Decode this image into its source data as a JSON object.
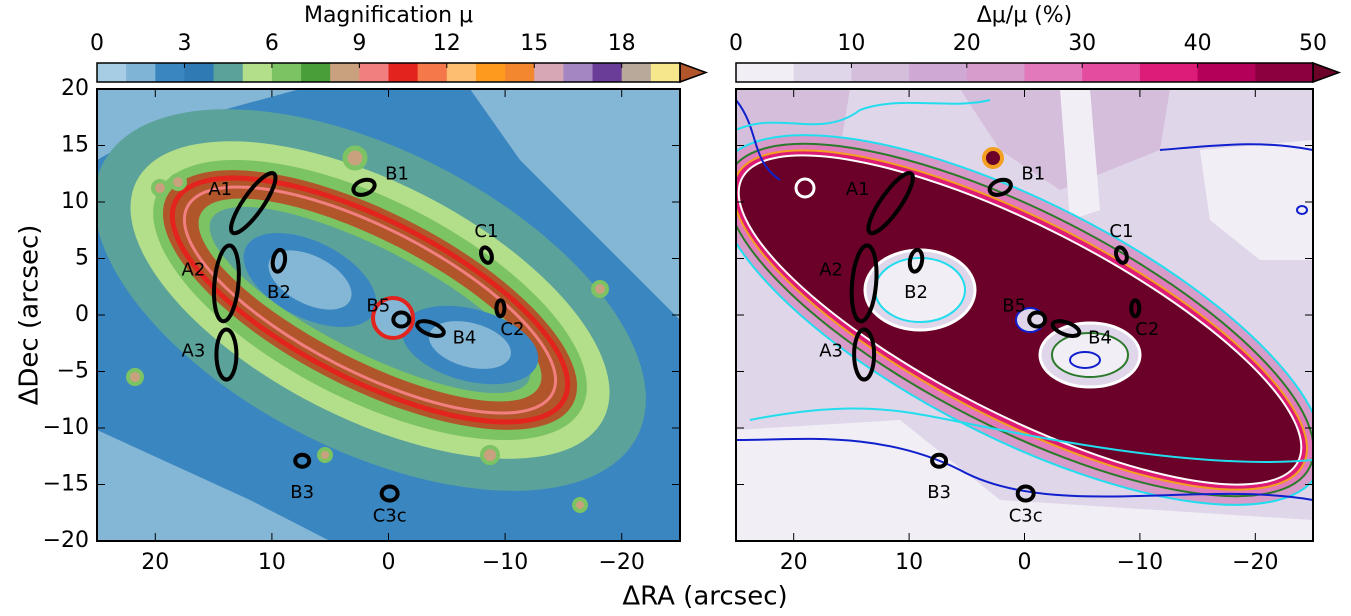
{
  "chart_data": [
    {
      "type": "map",
      "colorbar_label": "Magnification μ",
      "clim": [
        0,
        20
      ],
      "cbar_ticks": [
        0,
        3,
        6,
        9,
        12,
        15,
        18
      ],
      "colors": [
        "#a6cde3",
        "#7fb4d6",
        "#3a86c0",
        "#2f7ab5",
        "#5ba29b",
        "#b3de8a",
        "#7cc363",
        "#4a9e3a",
        "#c9a17f",
        "#f27f7f",
        "#e3231d",
        "#f4784a",
        "#fdbf6f",
        "#fe9a1e",
        "#f3872f",
        "#d8a7b5",
        "#a486c2",
        "#6a3e98",
        "#b9a99a",
        "#f6e68c"
      ],
      "over_color": "#b0562a",
      "x_label": "ΔRA (arcsec)",
      "y_label": "ΔDec (arcsec)",
      "xlim": [
        25,
        -25
      ],
      "ylim": [
        -20,
        20
      ],
      "xticks": [
        20,
        10,
        0,
        {
          "value": -10,
          "label": "−10"
        },
        {
          "value": -20,
          "label": "−20"
        }
      ],
      "yticks": [
        {
          "value": -20,
          "label": "−20"
        },
        {
          "value": -15,
          "label": "−15"
        },
        {
          "value": -10,
          "label": "−10"
        },
        {
          "value": -5,
          "label": "−5"
        },
        0,
        5,
        10,
        15,
        20
      ],
      "images": [
        {
          "label": "A1",
          "x": 11.6,
          "y": 9.9
        },
        {
          "label": "A2",
          "x": 13.9,
          "y": 2.8
        },
        {
          "label": "A3",
          "x": 13.9,
          "y": -3.5
        },
        {
          "label": "B1",
          "x": 2.1,
          "y": 11.3
        },
        {
          "label": "B2",
          "x": 9.4,
          "y": 4.8
        },
        {
          "label": "B3",
          "x": 7.4,
          "y": -12.9
        },
        {
          "label": "B4",
          "x": -3.6,
          "y": -1.2
        },
        {
          "label": "B5",
          "x": -1.1,
          "y": -0.4
        },
        {
          "label": "C1",
          "x": -8.4,
          "y": 5.3
        },
        {
          "label": "C2",
          "x": -9.6,
          "y": 0.6
        },
        {
          "label": "C3c",
          "x": -0.1,
          "y": -15.8
        }
      ]
    },
    {
      "type": "map",
      "colorbar_label": "Δμ/μ (%)",
      "clim": [
        0,
        50
      ],
      "cbar_ticks": [
        0,
        10,
        20,
        30,
        40,
        50
      ],
      "colors": [
        "#f2eef6",
        "#e0d6ea",
        "#d4bedc",
        "#cfa9d3",
        "#d79cc9",
        "#e279bb",
        "#e34c9f",
        "#dd1c77",
        "#b5005a",
        "#8c003f"
      ],
      "over_color": "#6b0028",
      "xlim": [
        25,
        -25
      ],
      "ylim": [
        -20,
        20
      ],
      "xticks": [
        20,
        10,
        0,
        {
          "value": -10,
          "label": "−10"
        },
        {
          "value": -20,
          "label": "−20"
        }
      ],
      "yticks": [
        -20,
        -15,
        -10,
        -5,
        0,
        5,
        10,
        15,
        20
      ],
      "images": [
        {
          "label": "A1",
          "x": 11.6,
          "y": 9.9
        },
        {
          "label": "A2",
          "x": 13.9,
          "y": 2.8
        },
        {
          "label": "A3",
          "x": 13.9,
          "y": -3.5
        },
        {
          "label": "B1",
          "x": 2.1,
          "y": 11.3
        },
        {
          "label": "B2",
          "x": 9.4,
          "y": 4.8
        },
        {
          "label": "B3",
          "x": 7.4,
          "y": -12.9
        },
        {
          "label": "B4",
          "x": -3.6,
          "y": -1.2
        },
        {
          "label": "B5",
          "x": -1.1,
          "y": -0.4
        },
        {
          "label": "C1",
          "x": -8.4,
          "y": 5.3
        },
        {
          "label": "C2",
          "x": -9.6,
          "y": 0.6
        },
        {
          "label": "C3c",
          "x": -0.1,
          "y": -15.8
        }
      ]
    }
  ]
}
